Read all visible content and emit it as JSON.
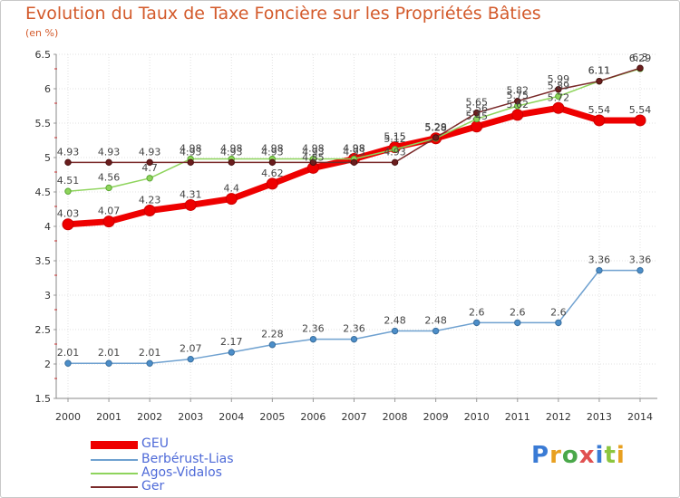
{
  "title": "Evolution du Taux de Taxe Foncière sur les Propriétés Bâties",
  "subtitle": "(en %)",
  "logo_text": "Proxiti",
  "chart_data": {
    "type": "line",
    "title": "Evolution du Taux de Taxe Foncière sur les Propriétés Bâties",
    "ylabel": "(en %)",
    "xlabel": "",
    "ylim": [
      1.5,
      6.5
    ],
    "y_ticks": [
      "1.5",
      "2",
      "2.5",
      "3",
      "3.5",
      "4",
      "4.5",
      "5",
      "5.5",
      "6",
      "6.5"
    ],
    "categories": [
      "2000",
      "2001",
      "2002",
      "2003",
      "2004",
      "2005",
      "2006",
      "2007",
      "2008",
      "2009",
      "2010",
      "2011",
      "2012",
      "2013",
      "2014"
    ],
    "series": [
      {
        "name": "GEU",
        "color": "#ee0000",
        "values": [
          4.03,
          4.07,
          4.23,
          4.31,
          4.4,
          4.62,
          4.85,
          4.98,
          5.15,
          5.28,
          5.45,
          5.62,
          5.72,
          5.54,
          5.54
        ],
        "labels": [
          "4.03",
          "4.07",
          "4.23",
          "4.31",
          "4.4",
          "4.62",
          "4.85",
          "4.98",
          "5.15",
          "5.28",
          "5.45",
          "5.62",
          "5.72",
          "5.54",
          "5.54"
        ]
      },
      {
        "name": "Berbérust-Lias",
        "color": "#6fa1d0",
        "values": [
          2.01,
          2.01,
          2.01,
          2.07,
          2.17,
          2.28,
          2.36,
          2.36,
          2.48,
          2.48,
          2.6,
          2.6,
          2.6,
          3.36,
          3.36
        ],
        "labels": [
          "2.01",
          "2.01",
          "2.01",
          "2.07",
          "2.17",
          "2.28",
          "2.36",
          "2.36",
          "2.48",
          "2.48",
          "2.6",
          "2.6",
          "2.6",
          "3.36",
          "3.36"
        ]
      },
      {
        "name": "Agos-Vidalos",
        "color": "#8ed45c",
        "values": [
          4.51,
          4.56,
          4.7,
          4.98,
          4.98,
          4.98,
          4.98,
          4.98,
          5.12,
          5.28,
          5.56,
          5.75,
          5.89,
          6.11,
          6.29
        ],
        "labels": [
          "4.51",
          "4.56",
          "4.7",
          "4.98",
          "4.98",
          "4.98",
          "4.98",
          "4.98",
          "5.12",
          "5.28",
          "5.56",
          "5.75",
          "5.89",
          "6.11",
          "6.29"
        ]
      },
      {
        "name": "Ger",
        "color": "#7a2a2a",
        "values": [
          4.93,
          4.93,
          4.93,
          4.93,
          4.93,
          4.93,
          4.93,
          4.93,
          4.93,
          5.29,
          5.65,
          5.82,
          5.99,
          6.11,
          6.3
        ],
        "labels": [
          "4.93",
          "4.93",
          "4.93",
          "4.93",
          "4.93",
          "4.93",
          "4.93",
          "4.93",
          "4.93",
          "5.29",
          "5.65",
          "5.82",
          "5.99",
          "6.11",
          "6.3"
        ]
      }
    ]
  }
}
